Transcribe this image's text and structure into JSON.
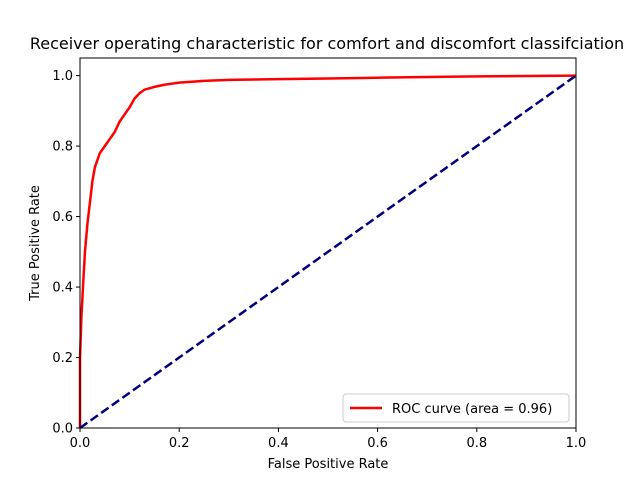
{
  "chart_data": {
    "type": "line",
    "title": "Receiver operating characteristic for comfort and discomfort classifciation",
    "xlabel": "False Positive Rate",
    "ylabel": "True Positive Rate",
    "xlim": [
      0.0,
      1.0
    ],
    "ylim": [
      0.0,
      1.05
    ],
    "xticks": [
      "0.0",
      "0.2",
      "0.4",
      "0.6",
      "0.8",
      "1.0"
    ],
    "yticks": [
      "0.0",
      "0.2",
      "0.4",
      "0.6",
      "0.8",
      "1.0"
    ],
    "grid": false,
    "legend_position": "lower-right",
    "series": [
      {
        "name": "ROC curve (area = 0.96)",
        "color": "#ff0000",
        "style": "solid",
        "x": [
          0.0,
          0.0,
          0.003,
          0.006,
          0.01,
          0.015,
          0.02,
          0.025,
          0.03,
          0.035,
          0.04,
          0.05,
          0.06,
          0.07,
          0.08,
          0.09,
          0.1,
          0.11,
          0.12,
          0.13,
          0.15,
          0.17,
          0.2,
          0.25,
          0.3,
          0.4,
          0.5,
          0.6,
          0.7,
          0.8,
          0.9,
          1.0
        ],
        "y": [
          0.0,
          0.2,
          0.32,
          0.4,
          0.5,
          0.58,
          0.64,
          0.7,
          0.74,
          0.76,
          0.78,
          0.8,
          0.82,
          0.84,
          0.87,
          0.89,
          0.91,
          0.935,
          0.95,
          0.96,
          0.968,
          0.974,
          0.98,
          0.985,
          0.988,
          0.99,
          0.992,
          0.994,
          0.996,
          0.998,
          0.999,
          1.0
        ]
      },
      {
        "color": "#000080",
        "style": "dashed",
        "x": [
          0.0,
          1.0
        ],
        "y": [
          0.0,
          1.0
        ]
      }
    ]
  }
}
